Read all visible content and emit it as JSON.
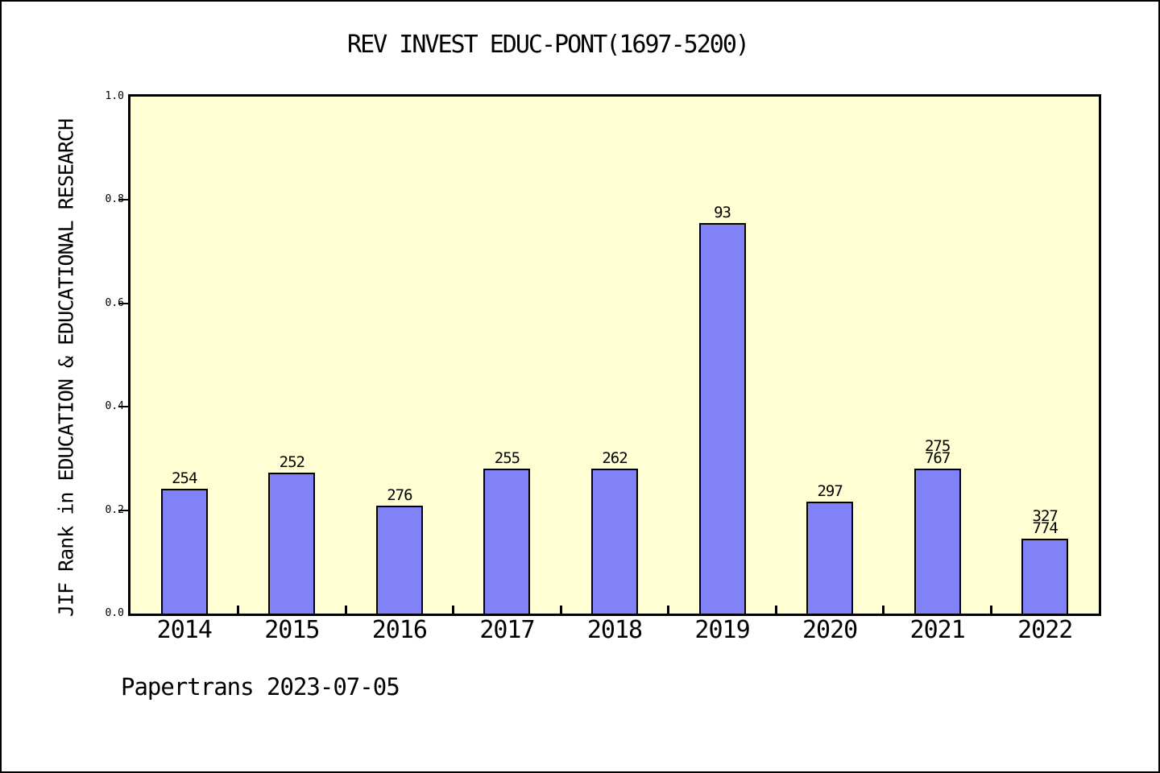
{
  "chart_data": {
    "type": "bar",
    "title": "REV INVEST EDUC-PONT(1697-5200)",
    "ylabel": "JIF Rank in EDUCATION & EDUCATIONAL RESEARCH",
    "xlabel": "",
    "footer": "Papertrans 2023-07-05",
    "categories": [
      "2014",
      "2015",
      "2016",
      "2017",
      "2018",
      "2019",
      "2020",
      "2021",
      "2022"
    ],
    "values": [
      0.238,
      0.269,
      0.205,
      0.278,
      0.278,
      0.752,
      0.214,
      0.278,
      0.142
    ],
    "bar_labels": [
      [
        "254"
      ],
      [
        "252"
      ],
      [
        "276"
      ],
      [
        "255"
      ],
      [
        "262"
      ],
      [
        "93"
      ],
      [
        "297"
      ],
      [
        "275",
        "767"
      ],
      [
        "327",
        "774"
      ]
    ],
    "ylim": [
      0.0,
      1.0
    ],
    "yticks": [
      0.0,
      0.2,
      0.4,
      0.6,
      0.8,
      1.0
    ],
    "ytick_labels": [
      "0.0",
      "0.2",
      "0.4",
      "0.6",
      "0.8",
      "1.0"
    ],
    "grid": false,
    "legend_position": "none",
    "colors": {
      "bar_fill": "#8282f8",
      "bar_edge": "#000000",
      "plot_background": "#ffffd3",
      "figure_background": "#ffffff",
      "text": "#000000"
    }
  }
}
